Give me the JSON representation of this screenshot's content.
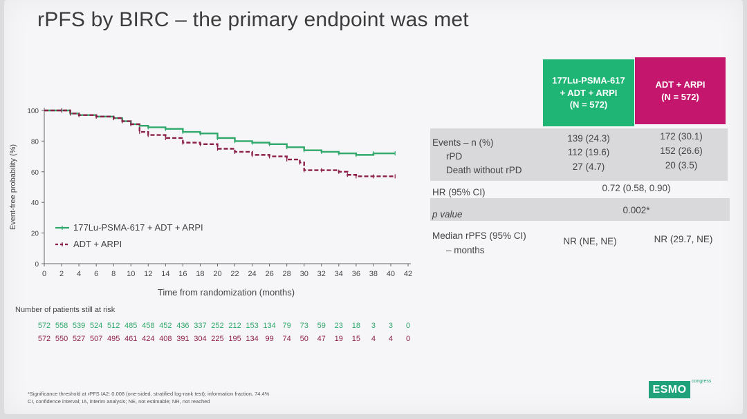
{
  "slide": {
    "title": "rPFS by BIRC – the primary endpoint was met"
  },
  "colors": {
    "green": "#1fb574",
    "red": "#8c1f48",
    "pink": "#c4166d"
  },
  "chart_data": {
    "type": "line",
    "xlabel": "Time from randomization (months)",
    "ylabel": "Event-free probability (%)",
    "xlim": [
      0,
      42
    ],
    "ylim": [
      0,
      100
    ],
    "x_ticks": [
      0,
      2,
      4,
      6,
      8,
      10,
      12,
      14,
      16,
      18,
      20,
      22,
      24,
      26,
      28,
      30,
      32,
      34,
      36,
      38,
      40,
      42
    ],
    "y_ticks": [
      0,
      20,
      40,
      60,
      80,
      100
    ],
    "grid": false,
    "legend_position": "bottom-left",
    "series": [
      {
        "name": "177Lu-PSMA-617 + ADT + ARPI",
        "color": "#2fa86a",
        "x": [
          0,
          2,
          3,
          4,
          6,
          8,
          9,
          10,
          11,
          12,
          14,
          16,
          18,
          20,
          22,
          24,
          26,
          28,
          30,
          32,
          34,
          36,
          38,
          40.5
        ],
        "y": [
          100,
          100,
          98,
          97,
          96,
          95,
          93,
          91,
          90,
          89,
          88,
          86,
          85,
          82,
          80,
          79,
          78,
          76,
          74,
          73,
          72,
          71,
          72,
          72
        ]
      },
      {
        "name": "ADT + ARPI",
        "color": "#8c1f48",
        "x": [
          0,
          2,
          3,
          4,
          6,
          8,
          9,
          10,
          11,
          12,
          14,
          16,
          18,
          20,
          22,
          24,
          26,
          28,
          29.5,
          30,
          32,
          34,
          35,
          36,
          38,
          40.5
        ],
        "y": [
          100,
          100,
          98,
          97,
          96,
          95,
          93,
          91,
          86,
          84,
          82,
          79,
          78,
          75,
          73,
          71,
          70,
          68,
          66,
          61,
          61,
          60,
          58,
          57,
          57,
          57
        ]
      }
    ],
    "at_risk": {
      "label": "Number of patients still at risk",
      "times": [
        0,
        2,
        4,
        6,
        8,
        10,
        12,
        14,
        16,
        18,
        20,
        22,
        24,
        26,
        28,
        30,
        32,
        34,
        36,
        38,
        40,
        42
      ],
      "green": [
        "572",
        "558",
        "539",
        "524",
        "512",
        "485",
        "458",
        "452",
        "436",
        "337",
        "252",
        "212",
        "153",
        "134",
        "79",
        "73",
        "59",
        "23",
        "18",
        "3",
        "3",
        "0"
      ],
      "red": [
        "572",
        "550",
        "527",
        "507",
        "495",
        "461",
        "424",
        "408",
        "391",
        "304",
        "225",
        "195",
        "134",
        "99",
        "74",
        "50",
        "47",
        "19",
        "15",
        "4",
        "4",
        "0"
      ]
    }
  },
  "table": {
    "col1_header": [
      "177Lu-PSMA-617",
      "+ ADT + ARPI",
      "(N = 572)"
    ],
    "col2_header": [
      "ADT + ARPI",
      "(N = 572)"
    ],
    "rows": {
      "events_label": [
        "Events – n (%)",
        "rPD",
        "Death without rPD"
      ],
      "events_col1": [
        "139 (24.3)",
        "112 (19.6)",
        "27 (4.7)"
      ],
      "events_col2": [
        "172 (30.1)",
        "152 (26.6)",
        "20 (3.5)"
      ],
      "hr_label": "HR (95% CI)",
      "hr_value": "0.72 (0.58, 0.90)",
      "p_label": "p value",
      "p_value": "0.002*",
      "median_label": [
        "Median rPFS (95% CI)",
        "– months"
      ],
      "median_col1": "NR (NE, NE)",
      "median_col2": "NR (29.7, NE)"
    }
  },
  "footnote": [
    "*Significance threshold at rPFS IA2: 0.008 (one-sided, stratified log-rank test); information fraction, 74.4%",
    "CI, confidence interval; IA, interim analysis; NE, not estimable; NR, not reached"
  ],
  "logo": {
    "text": "ESMO",
    "sub": "congress"
  }
}
